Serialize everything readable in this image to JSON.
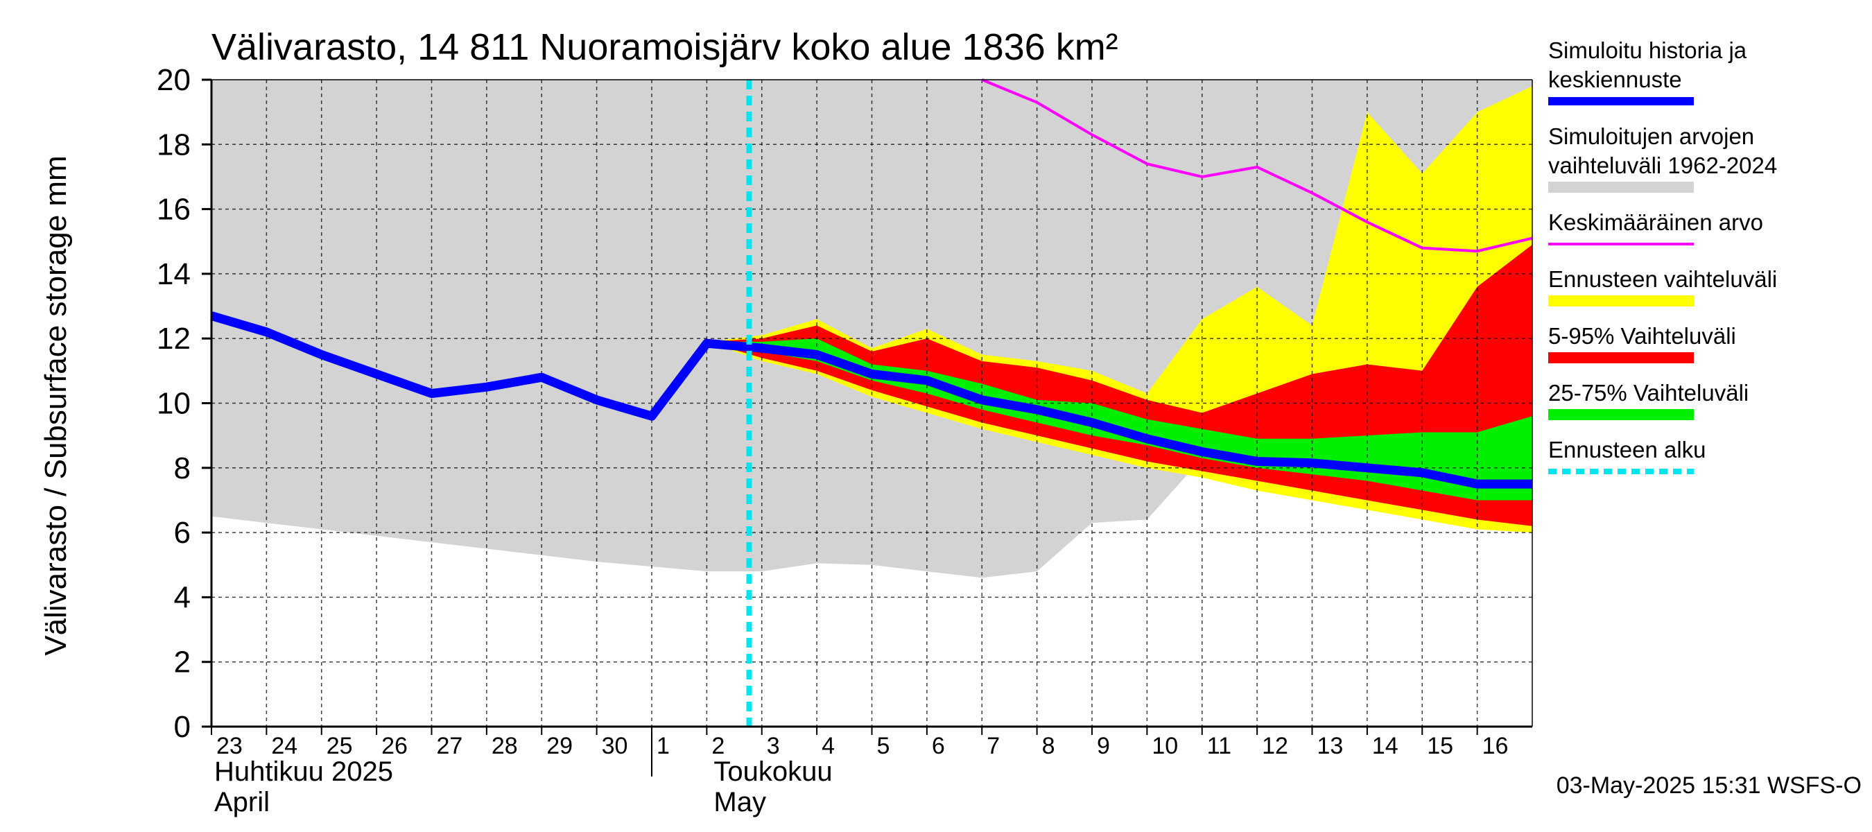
{
  "chart_data": {
    "type": "area",
    "title": "Välivarasto, 14 811 Nuoramoisjärv koko alue 1836 km²",
    "ylabel": "Välivarasto / Subsurface storage  mm",
    "ylim": [
      0,
      20
    ],
    "yticks": [
      0,
      2,
      4,
      6,
      8,
      10,
      12,
      14,
      16,
      18,
      20
    ],
    "grid": true,
    "legend_position": "right",
    "x_start": "2025-04-23",
    "x_end": "2025-05-17",
    "day_labels": [
      "23",
      "24",
      "25",
      "26",
      "27",
      "28",
      "29",
      "30",
      "1",
      "2",
      "3",
      "4",
      "5",
      "6",
      "7",
      "8",
      "9",
      "10",
      "11",
      "12",
      "13",
      "14",
      "15",
      "16"
    ],
    "month_labels": [
      {
        "line1": "Huhtikuu  2025",
        "line2": "April"
      },
      {
        "line1": "Toukokuu",
        "line2": "May"
      }
    ],
    "forecast_start": "2025-05-03",
    "footer": "03-May-2025 15:31 WSFS-O",
    "legend": [
      {
        "label": "Simuloitu historia ja keskiennuste",
        "lines": [
          "Simuloitu historia ja",
          "keskiennuste"
        ],
        "color": "#0000ff",
        "style": "line"
      },
      {
        "label": "Simuloitujen arvojen vaihteluväli 1962-2024",
        "lines": [
          "Simuloitujen arvojen",
          "vaihteluväli 1962-2024"
        ],
        "color": "#d3d3d3",
        "style": "band"
      },
      {
        "label": "Keskimääräinen arvo",
        "lines": [
          "Keskimääräinen arvo"
        ],
        "color": "#ff00ff",
        "style": "thin"
      },
      {
        "label": "Ennusteen vaihteluväli",
        "lines": [
          "Ennusteen vaihteluväli"
        ],
        "color": "#ffff00",
        "style": "band"
      },
      {
        "label": "5-95% Vaihteluväli",
        "lines": [
          "5-95% Vaihteluväli"
        ],
        "color": "#ff0000",
        "style": "band"
      },
      {
        "label": "25-75% Vaihteluväli",
        "lines": [
          "25-75% Vaihteluväli"
        ],
        "color": "#00ee00",
        "style": "band"
      },
      {
        "label": "Ennusteen alku",
        "lines": [
          "Ennusteen alku"
        ],
        "color": "#00e5ee",
        "style": "dashed"
      }
    ],
    "series": {
      "history_range": {
        "x": [
          "2025-04-23",
          "2025-04-24",
          "2025-04-25",
          "2025-04-26",
          "2025-04-27",
          "2025-04-28",
          "2025-04-29",
          "2025-04-30",
          "2025-05-01",
          "2025-05-02",
          "2025-05-03",
          "2025-05-04",
          "2025-05-05",
          "2025-05-06",
          "2025-05-07",
          "2025-05-08",
          "2025-05-09",
          "2025-05-10",
          "2025-05-11",
          "2025-05-12",
          "2025-05-13",
          "2025-05-14",
          "2025-05-15",
          "2025-05-16",
          "2025-05-17"
        ],
        "lower": [
          6.5,
          6.3,
          6.1,
          5.9,
          5.7,
          5.5,
          5.3,
          5.1,
          4.95,
          4.8,
          4.8,
          5.05,
          5.0,
          4.8,
          4.6,
          4.8,
          6.3,
          6.4,
          8.3,
          8.4,
          8.3,
          8.2,
          8.1,
          8.2,
          8.2
        ],
        "upper": [
          20,
          20,
          20,
          20,
          20,
          20,
          20,
          20,
          20,
          20,
          20,
          20,
          20,
          20,
          20,
          20,
          20,
          20,
          20,
          20,
          20,
          20,
          20,
          20,
          20
        ]
      },
      "mean_value": {
        "x": [
          "2025-05-07",
          "2025-05-08",
          "2025-05-09",
          "2025-05-10",
          "2025-05-11",
          "2025-05-12",
          "2025-05-13",
          "2025-05-14",
          "2025-05-15",
          "2025-05-16",
          "2025-05-17"
        ],
        "values": [
          20.0,
          19.3,
          18.3,
          17.4,
          17.0,
          17.3,
          16.5,
          15.6,
          14.8,
          14.7,
          15.1
        ]
      },
      "forecast_range": {
        "x": [
          "2025-05-02",
          "2025-05-03",
          "2025-05-04",
          "2025-05-05",
          "2025-05-06",
          "2025-05-07",
          "2025-05-08",
          "2025-05-09",
          "2025-05-10",
          "2025-05-11",
          "2025-05-12",
          "2025-05-13",
          "2025-05-14",
          "2025-05-15",
          "2025-05-16",
          "2025-05-17"
        ],
        "lower": [
          11.9,
          11.3,
          10.9,
          10.2,
          9.7,
          9.2,
          8.8,
          8.4,
          8.0,
          7.7,
          7.3,
          7.0,
          6.7,
          6.4,
          6.1,
          6.0
        ],
        "upper": [
          11.9,
          12.1,
          12.6,
          11.7,
          12.3,
          11.5,
          11.3,
          11.0,
          10.3,
          12.6,
          13.6,
          12.4,
          19.0,
          17.1,
          19.0,
          19.8
        ]
      },
      "p5_95": {
        "x": [
          "2025-05-02",
          "2025-05-03",
          "2025-05-04",
          "2025-05-05",
          "2025-05-06",
          "2025-05-07",
          "2025-05-08",
          "2025-05-09",
          "2025-05-10",
          "2025-05-11",
          "2025-05-12",
          "2025-05-13",
          "2025-05-14",
          "2025-05-15",
          "2025-05-16",
          "2025-05-17"
        ],
        "lower": [
          11.9,
          11.4,
          11.0,
          10.4,
          9.9,
          9.4,
          9.0,
          8.6,
          8.2,
          7.9,
          7.6,
          7.3,
          7.0,
          6.7,
          6.4,
          6.2
        ],
        "upper": [
          11.9,
          12.0,
          12.4,
          11.6,
          12.0,
          11.3,
          11.1,
          10.7,
          10.1,
          9.7,
          10.3,
          10.9,
          11.2,
          11.0,
          13.6,
          14.9
        ]
      },
      "p25_75": {
        "x": [
          "2025-05-02",
          "2025-05-03",
          "2025-05-04",
          "2025-05-05",
          "2025-05-06",
          "2025-05-07",
          "2025-05-08",
          "2025-05-09",
          "2025-05-10",
          "2025-05-11",
          "2025-05-12",
          "2025-05-13",
          "2025-05-14",
          "2025-05-15",
          "2025-05-16",
          "2025-05-17"
        ],
        "lower": [
          11.9,
          11.6,
          11.3,
          10.7,
          10.3,
          9.8,
          9.4,
          9.0,
          8.7,
          8.3,
          8.0,
          7.8,
          7.6,
          7.3,
          7.0,
          7.0
        ],
        "upper": [
          11.9,
          11.9,
          12.0,
          11.2,
          11.0,
          10.6,
          10.1,
          10.0,
          9.5,
          9.2,
          8.9,
          8.9,
          9.0,
          9.1,
          9.1,
          9.6
        ]
      },
      "median_forecast": {
        "x": [
          "2025-04-23",
          "2025-04-24",
          "2025-04-25",
          "2025-04-26",
          "2025-04-27",
          "2025-04-28",
          "2025-04-29",
          "2025-04-30",
          "2025-05-01",
          "2025-05-02",
          "2025-05-03",
          "2025-05-04",
          "2025-05-05",
          "2025-05-06",
          "2025-05-07",
          "2025-05-08",
          "2025-05-09",
          "2025-05-10",
          "2025-05-11",
          "2025-05-12",
          "2025-05-13",
          "2025-05-14",
          "2025-05-15",
          "2025-05-16",
          "2025-05-17"
        ],
        "values": [
          12.7,
          12.2,
          11.5,
          10.9,
          10.3,
          10.5,
          10.8,
          10.1,
          9.6,
          11.85,
          11.7,
          11.5,
          10.9,
          10.7,
          10.1,
          9.8,
          9.4,
          8.9,
          8.5,
          8.2,
          8.15,
          8.0,
          7.85,
          7.5,
          7.5
        ]
      }
    }
  }
}
